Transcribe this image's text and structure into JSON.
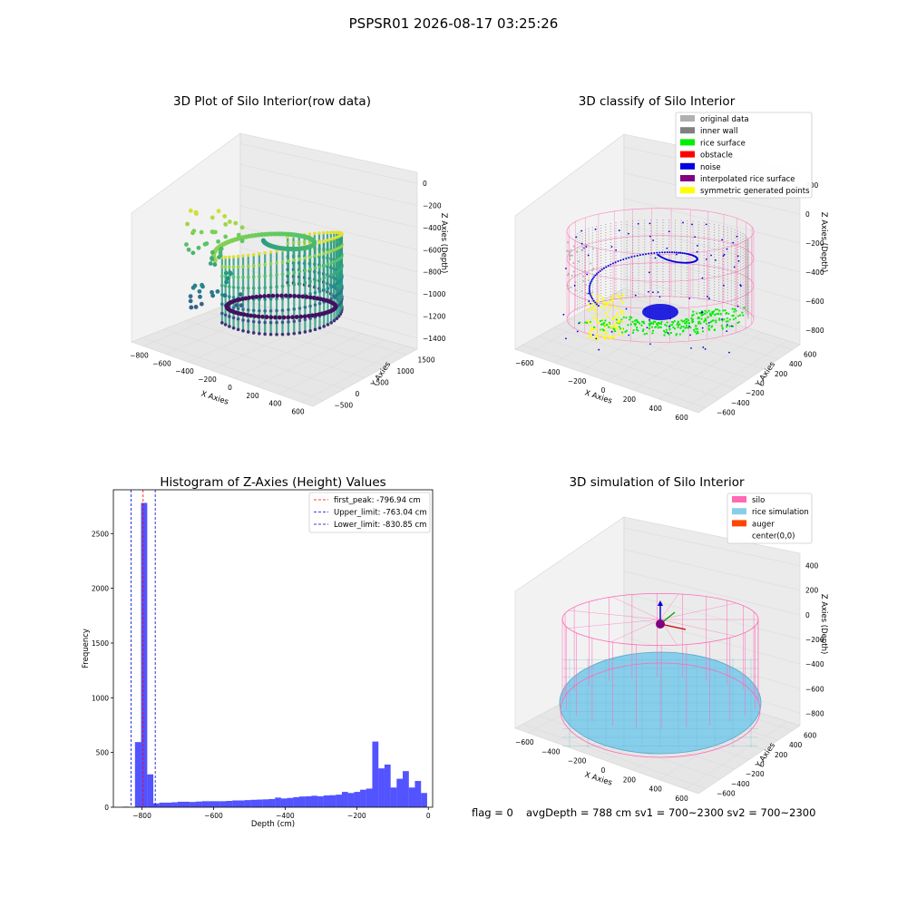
{
  "figure_title": "PSPSR01 2026-08-17 03:25:26",
  "footer": {
    "flag": "flag = 0",
    "summary": "avgDepth = 788 cm  sv1 = 700~2300  sv2 = 700~2300"
  },
  "colors": {
    "hist_bar": "#4a4aff",
    "first_peak_line": "#ff0000",
    "limit_line": "#0000cc",
    "silo_wire": "#ff69b4",
    "rice_sim": "#87ceeb",
    "auger": "#ff4500",
    "original": "#b0b0b0",
    "inner_wall": "#808080",
    "rice_surface": "#00ee00",
    "obstacle": "#ff0000",
    "noise": "#0000dd",
    "interpolated": "#800080",
    "symmetric": "#ffff00"
  },
  "chart_data": [
    {
      "type": "scatter",
      "subtype": "3d",
      "title": "3D Plot of Silo Interior(row data)",
      "xlabel": "X Axies",
      "ylabel": "Y Axies",
      "zlabel": "Z Axies (Depth)",
      "x_ticks": [
        "−800",
        "−600",
        "−400",
        "−200",
        "0",
        "200",
        "400",
        "600"
      ],
      "y_ticks": [
        "−500",
        "0",
        "500",
        "1000",
        "1500"
      ],
      "z_ticks": [
        "0",
        "−200",
        "−400",
        "−600",
        "−800",
        "−1000",
        "−1200",
        "−1400"
      ],
      "colormap": "viridis"
    },
    {
      "type": "scatter",
      "subtype": "3d",
      "title": "3D classify of Silo Interior",
      "xlabel": "X Axies",
      "ylabel": "Y Axies",
      "zlabel": "Z Axies (Depth)",
      "x_ticks": [
        "−600",
        "−400",
        "−200",
        "0",
        "200",
        "400",
        "600"
      ],
      "y_ticks": [
        "−600",
        "−400",
        "−200",
        "0",
        "200",
        "400",
        "600"
      ],
      "z_ticks": [
        "200",
        "0",
        "−200",
        "−400",
        "−600",
        "−800"
      ],
      "legend": [
        "original data",
        "inner wall",
        "rice surface",
        "obstacle",
        "noise",
        "interpolated rice surface",
        "symmetric generated points"
      ],
      "legend_placement": "top-right"
    },
    {
      "type": "bar",
      "subtype": "histogram",
      "title": "Histogram of Z-Axies (Height) Values",
      "xlabel": "Depth (cm)",
      "ylabel": "Frequency",
      "xlim": [
        -880,
        12
      ],
      "ylim": [
        0,
        2900
      ],
      "x_ticks": [
        "−800",
        "−600",
        "−400",
        "−200",
        "0"
      ],
      "x_tick_values": [
        -800,
        -600,
        -400,
        -200,
        0
      ],
      "y_ticks": [
        "0",
        "500",
        "1000",
        "1500",
        "2000",
        "2500"
      ],
      "y_tick_values": [
        0,
        500,
        1000,
        1500,
        2000,
        2500
      ],
      "bin_width": 17.2,
      "bins": [
        {
          "x": -845,
          "v": 5
        },
        {
          "x": -828,
          "v": 0
        },
        {
          "x": -811,
          "v": 595
        },
        {
          "x": -794,
          "v": 2780
        },
        {
          "x": -777,
          "v": 300
        },
        {
          "x": -760,
          "v": 35
        },
        {
          "x": -743,
          "v": 42
        },
        {
          "x": -726,
          "v": 42
        },
        {
          "x": -709,
          "v": 45
        },
        {
          "x": -692,
          "v": 50
        },
        {
          "x": -675,
          "v": 50
        },
        {
          "x": -658,
          "v": 48
        },
        {
          "x": -641,
          "v": 52
        },
        {
          "x": -624,
          "v": 55
        },
        {
          "x": -607,
          "v": 55
        },
        {
          "x": -590,
          "v": 55
        },
        {
          "x": -573,
          "v": 55
        },
        {
          "x": -556,
          "v": 58
        },
        {
          "x": -539,
          "v": 62
        },
        {
          "x": -522,
          "v": 62
        },
        {
          "x": -505,
          "v": 65
        },
        {
          "x": -488,
          "v": 68
        },
        {
          "x": -471,
          "v": 70
        },
        {
          "x": -454,
          "v": 72
        },
        {
          "x": -437,
          "v": 75
        },
        {
          "x": -420,
          "v": 88
        },
        {
          "x": -403,
          "v": 80
        },
        {
          "x": -386,
          "v": 85
        },
        {
          "x": -369,
          "v": 92
        },
        {
          "x": -352,
          "v": 98
        },
        {
          "x": -335,
          "v": 100
        },
        {
          "x": -318,
          "v": 105
        },
        {
          "x": -301,
          "v": 100
        },
        {
          "x": -284,
          "v": 108
        },
        {
          "x": -267,
          "v": 110
        },
        {
          "x": -250,
          "v": 115
        },
        {
          "x": -233,
          "v": 140
        },
        {
          "x": -216,
          "v": 130
        },
        {
          "x": -199,
          "v": 140
        },
        {
          "x": -182,
          "v": 160
        },
        {
          "x": -165,
          "v": 170
        },
        {
          "x": -148,
          "v": 600
        },
        {
          "x": -131,
          "v": 355
        },
        {
          "x": -114,
          "v": 390
        },
        {
          "x": -97,
          "v": 180
        },
        {
          "x": -80,
          "v": 260
        },
        {
          "x": -63,
          "v": 330
        },
        {
          "x": -46,
          "v": 180
        },
        {
          "x": -29,
          "v": 240
        },
        {
          "x": -12,
          "v": 130
        }
      ],
      "vlines": [
        {
          "x": -796.94,
          "label": "first_peak: -796.94 cm",
          "style": "first_peak"
        },
        {
          "x": -763.04,
          "label": "Upper_limit: -763.04 cm",
          "style": "limit"
        },
        {
          "x": -830.85,
          "label": "Lower_limit: -830.85 cm",
          "style": "limit"
        }
      ],
      "legend_placement": "top-right"
    },
    {
      "type": "scatter",
      "subtype": "3d",
      "title": "3D simulation of Silo Interior",
      "xlabel": "X Axies",
      "ylabel": "Y Axies",
      "zlabel": "Z Axies (Depth)",
      "x_ticks": [
        "−600",
        "−400",
        "−200",
        "0",
        "200",
        "400",
        "600"
      ],
      "y_ticks": [
        "−600",
        "−400",
        "−200",
        "0",
        "200",
        "400",
        "600"
      ],
      "z_ticks": [
        "400",
        "200",
        "0",
        "−200",
        "−400",
        "−600",
        "−800"
      ],
      "legend": [
        "silo",
        "rice simulation",
        "auger",
        "center(0,0)"
      ],
      "legend_placement": "top-right"
    }
  ]
}
